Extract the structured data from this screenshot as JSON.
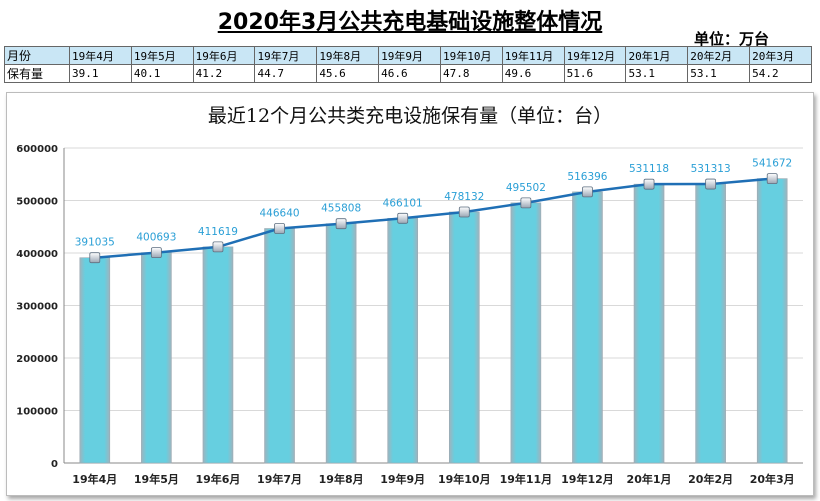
{
  "page_title": "2020年3月公共充电基础设施整体情况",
  "unit_label": "单位：万台",
  "summary_table": {
    "header_label": "月份",
    "row_label": "保有量",
    "months": [
      "19年4月",
      "19年5月",
      "19年6月",
      "19年7月",
      "19年8月",
      "19年9月",
      "19年10月",
      "19年11月",
      "19年12月",
      "20年1月",
      "20年2月",
      "20年3月"
    ],
    "values": [
      "39.1",
      "40.1",
      "41.2",
      "44.7",
      "45.6",
      "46.6",
      "47.8",
      "49.6",
      "51.6",
      "53.1",
      "53.1",
      "54.2"
    ]
  },
  "chart_data": {
    "type": "bar",
    "title": "最近12个月公共类充电设施保有量（单位：台）",
    "categories": [
      "19年4月",
      "19年5月",
      "19年6月",
      "19年7月",
      "19年8月",
      "19年9月",
      "19年10月",
      "19年11月",
      "19年12月",
      "20年1月",
      "20年2月",
      "20年3月"
    ],
    "series": [
      {
        "name": "保有量（柱）",
        "kind": "bar",
        "values": [
          391035,
          400693,
          411619,
          446640,
          455808,
          466101,
          478132,
          495502,
          516396,
          531118,
          531313,
          541672
        ]
      },
      {
        "name": "保有量（折线）",
        "kind": "line",
        "values": [
          391035,
          400693,
          411619,
          446640,
          455808,
          466101,
          478132,
          495502,
          516396,
          531118,
          531313,
          541672
        ]
      }
    ],
    "data_labels": [
      "391035",
      "400693",
      "411619",
      "446640",
      "455808",
      "466101",
      "478132",
      "495502",
      "516396",
      "531118",
      "531313",
      "541672"
    ],
    "y_ticks": [
      "0",
      "100000",
      "200000",
      "300000",
      "400000",
      "500000",
      "600000"
    ],
    "ylim": [
      0,
      600000
    ],
    "xlabel": "",
    "ylabel": "",
    "grid": true,
    "legend": "none",
    "colors": {
      "bar": "#66cfe0",
      "bar_edge": "#9aa9b2",
      "line": "#1f6fb5",
      "label": "#2a9fd6"
    }
  }
}
